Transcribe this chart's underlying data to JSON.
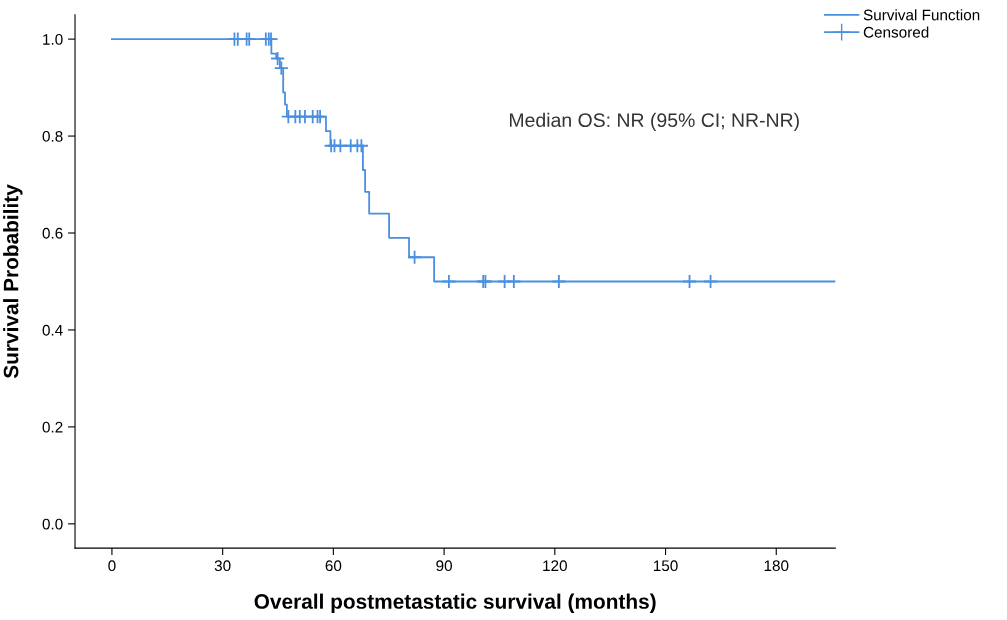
{
  "chart_data": {
    "type": "step",
    "xlabel": "Overall postmetastatic survival (months)",
    "ylabel": "Survival Probability",
    "annotations": [
      "Median OS: NR (95% CI; NR-NR)"
    ],
    "xlim": [
      -10,
      196
    ],
    "xticks": [
      0,
      30,
      60,
      90,
      120,
      150,
      180
    ],
    "ylim": [
      -0.05,
      1.05
    ],
    "yticks": [
      {
        "value": 0,
        "label": "0.0"
      },
      {
        "value": 0.2,
        "label": "0.2"
      },
      {
        "value": 0.4,
        "label": "0.4"
      },
      {
        "value": 0.6,
        "label": "0.6"
      },
      {
        "value": 0.8,
        "label": "0.8"
      },
      {
        "value": 1,
        "label": "1.0"
      }
    ],
    "grid": false,
    "legend": "top right",
    "series": [
      {
        "name": "Survival Function",
        "color": "#4a8fe0",
        "marker": "none",
        "x": [
          0,
          43.2,
          44.5,
          45.5,
          46.4,
          46.9,
          47.4,
          58.0,
          59.2,
          68.0,
          68.6,
          69.7,
          75.1,
          80.5,
          87.3,
          196
        ],
        "values": [
          1.0,
          0.97,
          0.96,
          0.94,
          0.89,
          0.865,
          0.84,
          0.81,
          0.78,
          0.73,
          0.685,
          0.64,
          0.59,
          0.55,
          0.5,
          0.5
        ]
      },
      {
        "name": "Censored",
        "type": "scatter",
        "color": "#4a8fe0",
        "marker": "cross",
        "x": [
          33.2,
          34.1,
          36.5,
          37.2,
          41.7,
          42.5,
          43.1,
          44.9,
          45.9,
          47.8,
          49.7,
          50.9,
          52.3,
          54.4,
          55.7,
          56.4,
          59.4,
          60.3,
          61.9,
          64.7,
          66.5,
          67.6,
          82.0,
          91.3,
          100.6,
          101.2,
          106.4,
          108.9,
          121.1,
          156.5,
          162.2
        ],
        "values": [
          1.0,
          1.0,
          1.0,
          1.0,
          1.0,
          1.0,
          1.0,
          0.96,
          0.94,
          0.84,
          0.84,
          0.84,
          0.84,
          0.84,
          0.84,
          0.84,
          0.78,
          0.78,
          0.78,
          0.78,
          0.78,
          0.78,
          0.55,
          0.5,
          0.5,
          0.5,
          0.5,
          0.5,
          0.5,
          0.5,
          0.5
        ]
      }
    ]
  }
}
